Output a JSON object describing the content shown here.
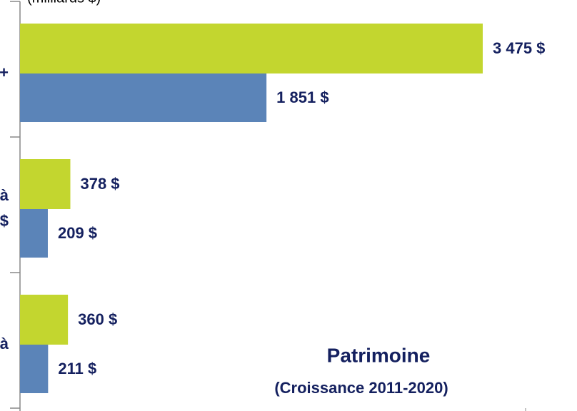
{
  "chart_data": {
    "type": "barh",
    "title": "Patrimoine",
    "subtitle": "(Croissance 2011-2020)",
    "axis_label": "(milliards $)",
    "categories": [
      [
        "+"
      ],
      [
        "à",
        "$"
      ],
      [
        "à"
      ]
    ],
    "series": [
      {
        "color": "#c3d62f",
        "values": [
          3475,
          378,
          360
        ],
        "value_labels": [
          "3 475 $",
          "378 $",
          "360 $"
        ]
      },
      {
        "color": "#5b84b8",
        "values": [
          1851,
          209,
          211
        ],
        "value_labels": [
          "1 851 $",
          "209 $",
          "211 $"
        ]
      }
    ],
    "xlim": [
      0,
      3475
    ]
  }
}
